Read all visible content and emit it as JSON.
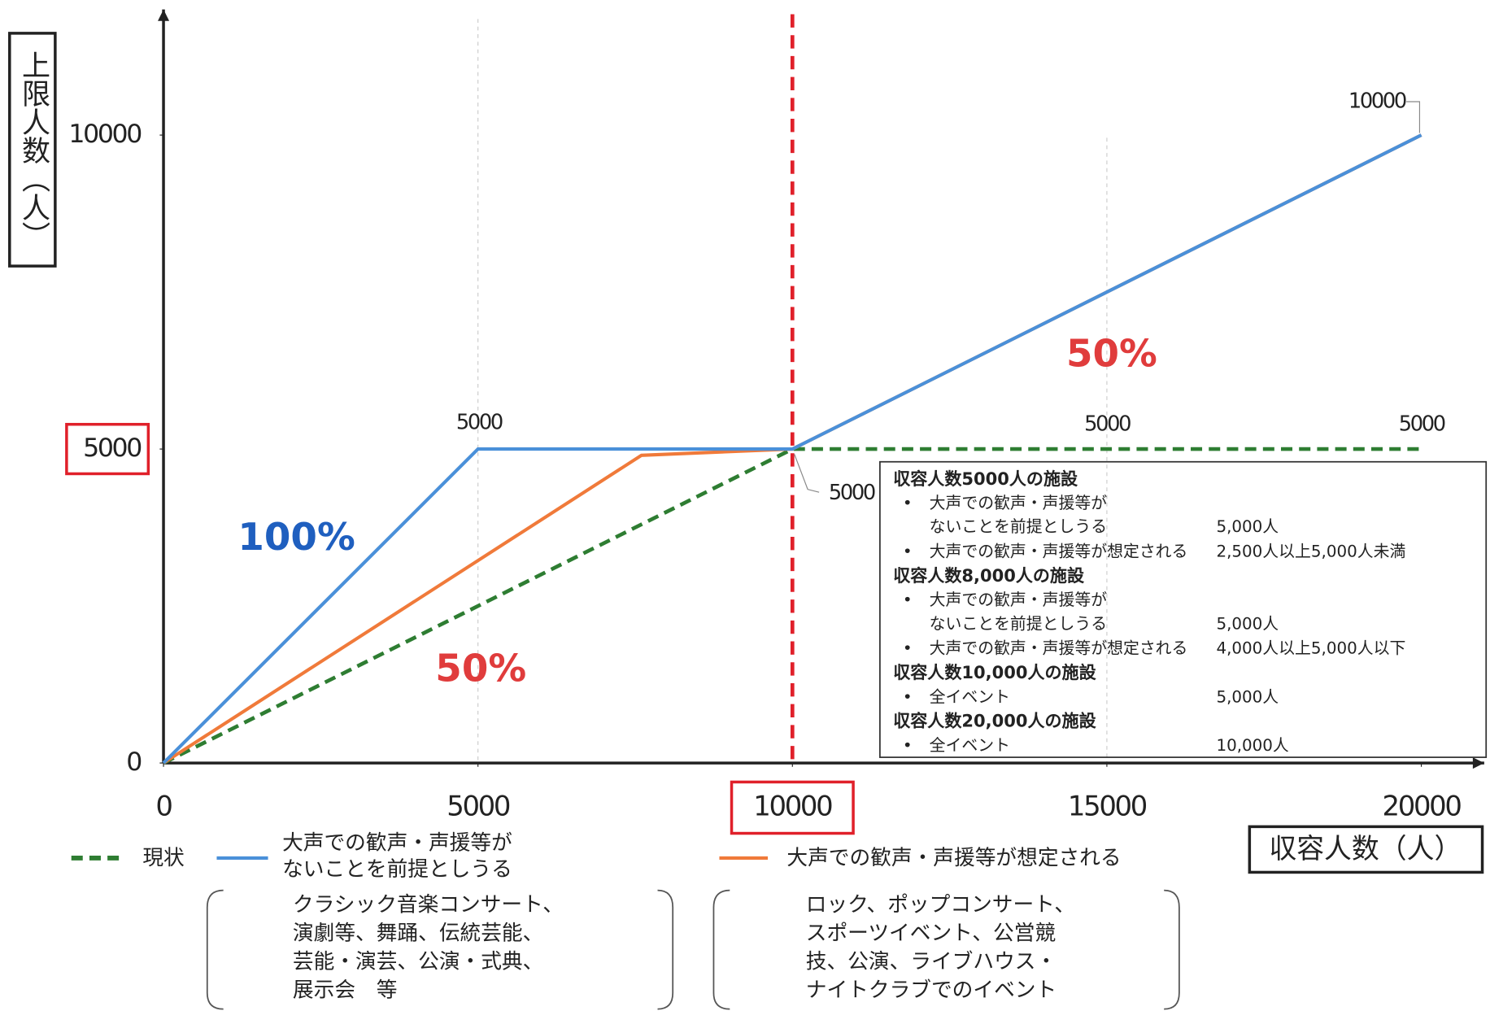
{
  "chart_data": {
    "type": "line",
    "y_label": "上限人数（人）",
    "x_label": "収容人数（人）",
    "xlim": [
      0,
      21000
    ],
    "ylim": [
      0,
      12000
    ],
    "xticks": [
      0,
      5000,
      10000,
      15000,
      20000
    ],
    "yticks": [
      0,
      5000,
      10000
    ],
    "highlight": {
      "x": 10000,
      "y": 5000,
      "color": "#e0202a"
    },
    "reference_line_x": 10000,
    "series": [
      {
        "name": "現状",
        "color": "#2e7d32",
        "dashed": true,
        "x": [
          0,
          10000,
          20000
        ],
        "values": [
          0,
          5000,
          5000
        ]
      },
      {
        "name": "大声での歓声・声援等がないことを前提としうる",
        "color": "#4a90d9",
        "dashed": false,
        "x": [
          0,
          5000,
          10000,
          20000
        ],
        "values": [
          0,
          5000,
          5000,
          10000
        ]
      },
      {
        "name": "大声での歓声・声援等が想定される",
        "color": "#f07a3a",
        "dashed": false,
        "x": [
          0,
          7600,
          10000,
          20000
        ],
        "values": [
          0,
          4900,
          5000,
          10000
        ]
      }
    ],
    "annotations": [
      "5000",
      "5000",
      "5000",
      "5000",
      "10000",
      "100%",
      "50%",
      "50%"
    ],
    "info_box": [
      {
        "heading": "収容人数5000人の施設",
        "items": [
          {
            "label": [
              "大声での歓声・声援等が",
              "ないことを前提としうる"
            ],
            "value": "5,000人"
          },
          {
            "label": [
              "大声での歓声・声援等が想定される"
            ],
            "value": "2,500人以上5,000人未満"
          }
        ]
      },
      {
        "heading": "収容人数8,000人の施設",
        "items": [
          {
            "label": [
              "大声での歓声・声援等が",
              "ないことを前提としうる"
            ],
            "value": "5,000人"
          },
          {
            "label": [
              "大声での歓声・声援等が想定される"
            ],
            "value": "4,000人以上5,000人以下"
          }
        ]
      },
      {
        "heading": "収容人数10,000人の施設",
        "items": [
          {
            "label": [
              "全イベント"
            ],
            "value": "5,000人"
          }
        ]
      },
      {
        "heading": "収容人数20,000人の施設",
        "items": [
          {
            "label": [
              "全イベント"
            ],
            "value": "10,000人"
          }
        ]
      }
    ],
    "genre_examples": [
      [
        "クラシック音楽コンサート、",
        "演劇等、舞踊、伝統芸能、",
        "芸能・演芸、公演・式典、",
        "展示会　等"
      ],
      [
        "ロック、ポップコンサート、",
        "スポーツイベント、公営競",
        "技、公演、ライブハウス・",
        "ナイトクラブでのイベント"
      ]
    ]
  }
}
